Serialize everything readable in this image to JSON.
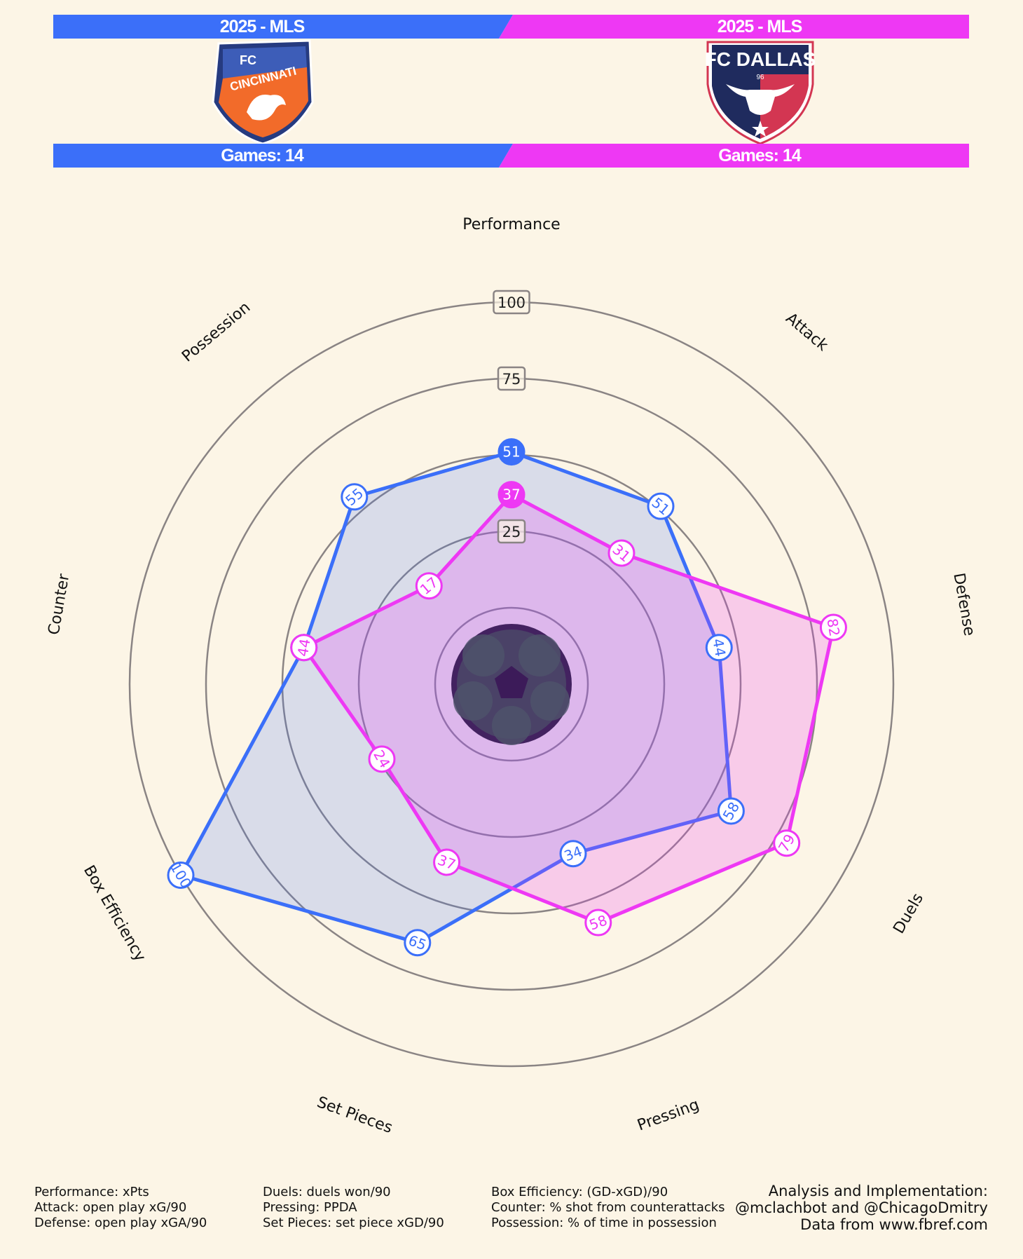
{
  "header": {
    "left": {
      "season": "2025 - MLS",
      "games": "Games: 14",
      "color": "#3b6ff9",
      "logo_text_top": "FC",
      "logo_text_main": "CINCINNATI"
    },
    "right": {
      "season": "2025 - MLS",
      "games": "Games: 14",
      "color": "#ee38f4",
      "logo_text_main": "FC DALLAS",
      "logo_text_small": "96"
    }
  },
  "chart_data": {
    "type": "radar",
    "axes": [
      "Performance",
      "Attack",
      "Defense",
      "Duels",
      "Pressing",
      "Set Pieces",
      "Box Efficiency",
      "Counter",
      "Possession"
    ],
    "rings": [
      0,
      25,
      50,
      75,
      100
    ],
    "ring_labels": [
      "25",
      "75",
      "100"
    ],
    "series": [
      {
        "color": "#3b6ff9",
        "values": [
          51,
          51,
          44,
          58,
          34,
          65,
          100,
          44,
          55
        ]
      },
      {
        "color": "#ee38f4",
        "values": [
          37,
          31,
          82,
          79,
          58,
          37,
          24,
          44,
          17
        ]
      }
    ]
  },
  "footer": {
    "col1": [
      "Performance: xPts",
      "Attack: open play xG/90",
      "Defense: open play xGA/90"
    ],
    "col2": [
      "Duels: duels won/90",
      "Pressing: PPDA",
      "Set Pieces: set piece xGD/90"
    ],
    "col3": [
      "Box Efficiency: (GD-xGD)/90",
      "Counter: % shot from counterattacks",
      "Possession: % of time in possession"
    ],
    "credits": [
      "Analysis and Implementation:",
      "@mclachbot and @ChicagoDmitry",
      "Data from www.fbref.com"
    ]
  }
}
